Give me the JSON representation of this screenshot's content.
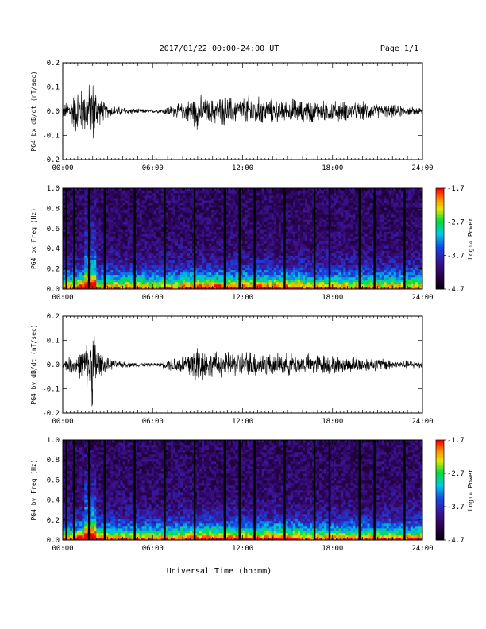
{
  "header": {
    "title": "2017/01/22  00:00-24:00 UT",
    "page": "Page 1/1"
  },
  "xlabel": "Universal Time (hh:mm)",
  "xticks": [
    "00:00",
    "06:00",
    "12:00",
    "18:00",
    "24:00"
  ],
  "colorbar": {
    "label": "Log₁₀ Power",
    "ticks": [
      "-1.7",
      "-2.7",
      "-3.7",
      "-4.7"
    ],
    "range": [
      -4.7,
      -1.7
    ]
  },
  "chart_data": [
    {
      "type": "line",
      "ylabel": "PG4 bx dB/dt (nT/sec)",
      "xlim": [
        0,
        24
      ],
      "ylim": [
        -0.2,
        0.2
      ],
      "yticks": [
        "0.2",
        "0.1",
        "0.0",
        "-0.1",
        "-0.2"
      ],
      "envelope_hours": [
        0,
        0.5,
        1,
        1.5,
        2,
        2.5,
        3,
        3.5,
        4,
        4.5,
        5,
        5.5,
        6,
        6.5,
        7,
        7.5,
        8,
        8.5,
        9,
        9.5,
        10,
        10.5,
        11,
        11.5,
        12,
        12.5,
        13,
        13.5,
        14,
        14.5,
        15,
        15.5,
        16,
        16.5,
        17,
        17.5,
        18,
        18.5,
        19,
        19.5,
        20,
        20.5,
        21,
        21.5,
        22,
        22.5,
        23,
        23.5,
        24
      ],
      "envelope_amplitude": [
        0.03,
        0.06,
        0.12,
        0.1,
        0.16,
        0.06,
        0.03,
        0.025,
        0.02,
        0.015,
        0.012,
        0.01,
        0.008,
        0.008,
        0.025,
        0.03,
        0.04,
        0.06,
        0.09,
        0.06,
        0.06,
        0.07,
        0.07,
        0.06,
        0.07,
        0.08,
        0.07,
        0.06,
        0.06,
        0.05,
        0.06,
        0.06,
        0.05,
        0.06,
        0.05,
        0.05,
        0.05,
        0.05,
        0.045,
        0.04,
        0.045,
        0.04,
        0.035,
        0.03,
        0.03,
        0.03,
        0.02,
        0.02,
        0.02
      ]
    },
    {
      "type": "heatmap",
      "ylabel": "PG4 bx Freq (Hz)",
      "xlim": [
        0,
        24
      ],
      "ylim": [
        0,
        1.0
      ],
      "yticks": [
        "1.0",
        "0.8",
        "0.6",
        "0.4",
        "0.2",
        "0.0"
      ],
      "gap_hours": [
        0.25,
        0.75,
        1.75,
        2.8,
        4.8,
        6.8,
        8.8,
        10.8,
        11.8,
        12.8,
        14.8,
        16.8,
        17.8,
        19.8,
        20.8,
        22.8
      ]
    },
    {
      "type": "line",
      "ylabel": "PG4 by dB/dt (nT/sec)",
      "xlim": [
        0,
        24
      ],
      "ylim": [
        -0.2,
        0.2
      ],
      "yticks": [
        "0.2",
        "0.1",
        "0.0",
        "-0.1",
        "-0.2"
      ],
      "envelope_hours": [
        0,
        0.5,
        1,
        1.5,
        2,
        2.5,
        3,
        3.5,
        4,
        4.5,
        5,
        5.5,
        6,
        6.5,
        7,
        7.5,
        8,
        8.5,
        9,
        9.5,
        10,
        10.5,
        11,
        11.5,
        12,
        12.5,
        13,
        13.5,
        14,
        14.5,
        15,
        15.5,
        16,
        16.5,
        17,
        17.5,
        18,
        18.5,
        19,
        19.5,
        20,
        20.5,
        21,
        21.5,
        22,
        22.5,
        23,
        23.5,
        24
      ],
      "envelope_amplitude": [
        0.02,
        0.04,
        0.06,
        0.08,
        0.2,
        0.06,
        0.03,
        0.02,
        0.015,
        0.012,
        0.01,
        0.01,
        0.008,
        0.01,
        0.025,
        0.04,
        0.05,
        0.08,
        0.1,
        0.07,
        0.06,
        0.06,
        0.06,
        0.06,
        0.06,
        0.07,
        0.06,
        0.06,
        0.05,
        0.05,
        0.05,
        0.06,
        0.05,
        0.05,
        0.05,
        0.05,
        0.045,
        0.04,
        0.04,
        0.04,
        0.035,
        0.035,
        0.03,
        0.03,
        0.025,
        0.02,
        0.02,
        0.02,
        0.02
      ]
    },
    {
      "type": "heatmap",
      "ylabel": "PG4 by Freq (Hz)",
      "xlim": [
        0,
        24
      ],
      "ylim": [
        0,
        1.0
      ],
      "yticks": [
        "1.0",
        "0.8",
        "0.6",
        "0.4",
        "0.2",
        "0.0"
      ],
      "gap_hours": [
        0.25,
        0.75,
        1.75,
        2.8,
        4.8,
        6.8,
        8.8,
        10.8,
        11.8,
        12.8,
        14.8,
        16.8,
        17.8,
        19.8,
        20.8,
        22.8
      ]
    }
  ]
}
